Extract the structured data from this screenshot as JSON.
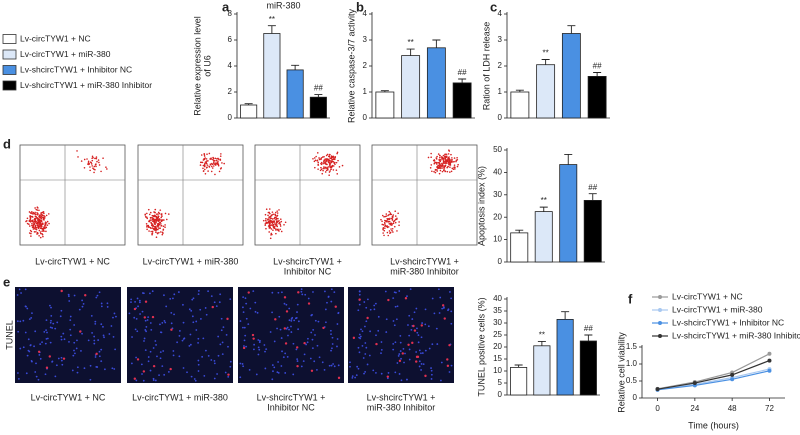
{
  "legend": {
    "labels": [
      "Lv-circTYW1 + NC",
      "Lv-circTYW1 + miR-380",
      "Lv-shcircTYW1 + Inhibitor NC",
      "Lv-shcircTYW1 + miR-380 Inhibitor"
    ],
    "colors": [
      "#ffffff",
      "#dce8f8",
      "#4a90e2",
      "#000000"
    ]
  },
  "flow": {
    "panel": "d",
    "captions": [
      [
        "Lv-circTYW1 + NC"
      ],
      [
        "Lv-circTYW1 + miR-380"
      ],
      [
        "Lv-shcircTYW1 +",
        "Inhibitor NC"
      ],
      [
        "Lv-shcircTYW1 +",
        "miR-380 Inhibitor"
      ]
    ]
  },
  "tunel": {
    "panel": "e",
    "label": "TUNEL",
    "captions": [
      [
        "Lv-circTYW1 + NC"
      ],
      [
        "Lv-circTYW1 + miR-380"
      ],
      [
        "Lv-shcircTYW1 +",
        "Inhibitor NC"
      ],
      [
        "Lv-shcircTYW1 +",
        "miR-380 Inhibitor"
      ]
    ]
  },
  "chart_data": [
    {
      "type": "bar",
      "panel": "a",
      "title": "miR-380",
      "ylabel": [
        "Relative expression level",
        "of U6"
      ],
      "values": [
        1,
        6.5,
        3.7,
        1.6
      ],
      "errors": [
        0.1,
        0.6,
        0.35,
        0.2
      ],
      "annotations": [
        null,
        "**",
        null,
        "##"
      ],
      "colors": [
        "#ffffff",
        "#dce8f8",
        "#4a90e2",
        "#000000"
      ],
      "ylim": [
        0,
        8
      ],
      "yticks": [
        0,
        2,
        4,
        6,
        8
      ]
    },
    {
      "type": "bar",
      "panel": "b",
      "ylabel": [
        "Relative caspase-3/7 activity"
      ],
      "values": [
        1,
        2.4,
        2.7,
        1.35
      ],
      "errors": [
        0.05,
        0.25,
        0.3,
        0.15
      ],
      "annotations": [
        null,
        "**",
        null,
        "##"
      ],
      "colors": [
        "#ffffff",
        "#dce8f8",
        "#4a90e2",
        "#000000"
      ],
      "ylim": [
        0,
        4
      ],
      "yticks": [
        0,
        1,
        2,
        3,
        4
      ]
    },
    {
      "type": "bar",
      "panel": "c",
      "ylabel": [
        "Ration of LDH release"
      ],
      "values": [
        1,
        2.05,
        3.25,
        1.6
      ],
      "errors": [
        0.07,
        0.2,
        0.3,
        0.15
      ],
      "annotations": [
        null,
        "**",
        null,
        "##"
      ],
      "colors": [
        "#ffffff",
        "#dce8f8",
        "#4a90e2",
        "#000000"
      ],
      "ylim": [
        0,
        4
      ],
      "yticks": [
        0,
        1,
        2,
        3,
        4
      ]
    },
    {
      "type": "bar",
      "ylabel": [
        "Apoptosis index (%)"
      ],
      "values": [
        13,
        22.5,
        43.5,
        27.5
      ],
      "errors": [
        1.2,
        2,
        4.5,
        3
      ],
      "annotations": [
        null,
        "**",
        null,
        "##"
      ],
      "colors": [
        "#ffffff",
        "#dce8f8",
        "#4a90e2",
        "#000000"
      ],
      "ylim": [
        0,
        50
      ],
      "yticks": [
        0,
        10,
        20,
        30,
        40,
        50
      ]
    },
    {
      "type": "bar",
      "ylabel": [
        "TUNEL positive cells (%)"
      ],
      "values": [
        11.5,
        20.5,
        31.5,
        22.5
      ],
      "errors": [
        1,
        1.8,
        3.2,
        2.5
      ],
      "annotations": [
        null,
        "**",
        null,
        "##"
      ],
      "colors": [
        "#ffffff",
        "#dce8f8",
        "#4a90e2",
        "#000000"
      ],
      "ylim": [
        0,
        40
      ],
      "yticks": [
        0,
        5,
        10,
        15,
        20,
        25,
        30,
        35,
        40
      ]
    },
    {
      "type": "line",
      "panel": "f",
      "ylabel": [
        "Relative cell viability"
      ],
      "xlabel": "Time (hours)",
      "x": [
        0,
        24,
        48,
        72
      ],
      "xlim": [
        -10,
        82
      ],
      "xticks": [
        0,
        24,
        48,
        72
      ],
      "ylim": [
        0,
        1.5
      ],
      "yticks": [
        0,
        0.5,
        {
          "value": 1,
          "label": "1.0"
        },
        1.5
      ],
      "series": [
        {
          "name": "Lv-circTYW1 + NC",
          "color": "#9a9a9a",
          "values": [
            0.27,
            0.47,
            0.75,
            1.3
          ]
        },
        {
          "name": "Lv-circTYW1 + miR-380",
          "color": "#a8c8f0",
          "values": [
            0.25,
            0.4,
            0.6,
            0.85
          ]
        },
        {
          "name": "Lv-shcircTYW1 + Inhibitor NC",
          "color": "#4a90e2",
          "values": [
            0.24,
            0.37,
            0.55,
            0.8
          ]
        },
        {
          "name": "Lv-shcircTYW1 + miR-380 Inhibitor",
          "color": "#333333",
          "values": [
            0.26,
            0.44,
            0.68,
            1.1
          ]
        }
      ]
    }
  ]
}
